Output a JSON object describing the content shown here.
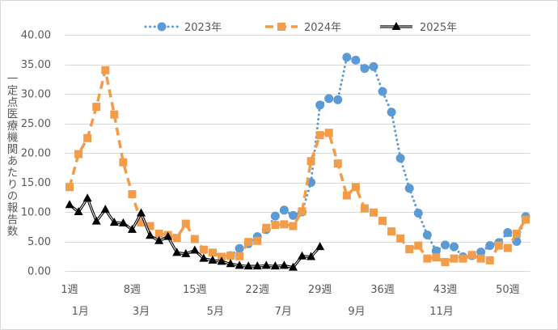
{
  "chart_data": {
    "type": "line",
    "ylabel": "一定点医療機関あたりの報告数",
    "xlim": [
      1,
      52
    ],
    "ylim": [
      0,
      40
    ],
    "grid": true,
    "legend_position": "top",
    "x": [
      1,
      2,
      3,
      4,
      5,
      6,
      7,
      8,
      9,
      10,
      11,
      12,
      13,
      14,
      15,
      16,
      17,
      18,
      19,
      20,
      21,
      22,
      23,
      24,
      25,
      26,
      27,
      28,
      29,
      30,
      31,
      32,
      33,
      34,
      35,
      36,
      37,
      38,
      39,
      40,
      41,
      42,
      43,
      44,
      45,
      46,
      47,
      48,
      49,
      50,
      51,
      52
    ],
    "x_ticks": [
      {
        "week": 1,
        "label": "1週"
      },
      {
        "week": 8,
        "label": "8週"
      },
      {
        "week": 15,
        "label": "15週"
      },
      {
        "week": 22,
        "label": "22週"
      },
      {
        "week": 29,
        "label": "29週"
      },
      {
        "week": 36,
        "label": "36週"
      },
      {
        "week": 43,
        "label": "43週"
      },
      {
        "week": 50,
        "label": "50週"
      }
    ],
    "month_labels": [
      {
        "week": 2.2,
        "label": "1月"
      },
      {
        "week": 9.0,
        "label": "3月"
      },
      {
        "week": 17.3,
        "label": "5月"
      },
      {
        "week": 24.9,
        "label": "7月"
      },
      {
        "week": 33.1,
        "label": "9月"
      },
      {
        "week": 42.6,
        "label": "11月"
      }
    ],
    "y_ticks": [
      {
        "value": 0,
        "label": "0.00"
      },
      {
        "value": 5,
        "label": "5.00"
      },
      {
        "value": 10,
        "label": "10.00"
      },
      {
        "value": 15,
        "label": "15.00"
      },
      {
        "value": 20,
        "label": "20.00"
      },
      {
        "value": 25,
        "label": "25.00"
      },
      {
        "value": 30,
        "label": "30.00"
      },
      {
        "value": 35,
        "label": "35.00"
      },
      {
        "value": 40,
        "label": "40.00"
      }
    ],
    "series": [
      {
        "name": "2023年",
        "color": "#5b9bd5",
        "values": [
          null,
          null,
          null,
          null,
          null,
          null,
          null,
          null,
          null,
          null,
          null,
          null,
          null,
          null,
          null,
          null,
          null,
          null,
          2.6,
          3.8,
          4.6,
          5.8,
          7.0,
          9.3,
          10.3,
          9.4,
          10.0,
          15.0,
          28.1,
          29.2,
          29.0,
          36.2,
          35.7,
          34.3,
          34.6,
          30.4,
          26.9,
          19.1,
          14.0,
          9.8,
          6.1,
          3.4,
          4.4,
          4.1,
          2.4,
          2.6,
          3.2,
          4.3,
          4.8,
          6.5,
          5.0,
          9.2
        ]
      },
      {
        "name": "2024年",
        "color": "#f39c4a",
        "values": [
          14.2,
          19.8,
          22.5,
          27.8,
          34.0,
          26.5,
          18.4,
          13.0,
          8.2,
          7.6,
          6.3,
          6.1,
          5.6,
          8.0,
          5.4,
          3.6,
          3.1,
          2.4,
          2.6,
          2.5,
          4.9,
          5.1,
          7.3,
          7.8,
          7.9,
          7.6,
          10.1,
          18.6,
          23.0,
          23.4,
          18.2,
          12.8,
          14.2,
          10.6,
          9.9,
          8.5,
          6.7,
          5.5,
          3.7,
          4.3,
          2.1,
          2.3,
          1.5,
          2.1,
          2.1,
          2.7,
          2.1,
          1.8,
          4.3,
          3.9,
          6.3,
          8.7
        ]
      },
      {
        "name": "2025年",
        "color": "#000000",
        "values": [
          11.2,
          10.0,
          12.3,
          8.4,
          10.4,
          8.2,
          8.1,
          7.0,
          9.8,
          6.0,
          5.1,
          5.8,
          3.1,
          2.9,
          3.5,
          2.1,
          1.8,
          1.6,
          1.2,
          0.9,
          0.8,
          0.8,
          0.9,
          0.8,
          0.9,
          0.6,
          2.5,
          2.4,
          4.1,
          null,
          null,
          null,
          null,
          null,
          null,
          null,
          null,
          null,
          null,
          null,
          null,
          null,
          null,
          null,
          null,
          null,
          null,
          null,
          null,
          null,
          null,
          null
        ]
      }
    ]
  }
}
